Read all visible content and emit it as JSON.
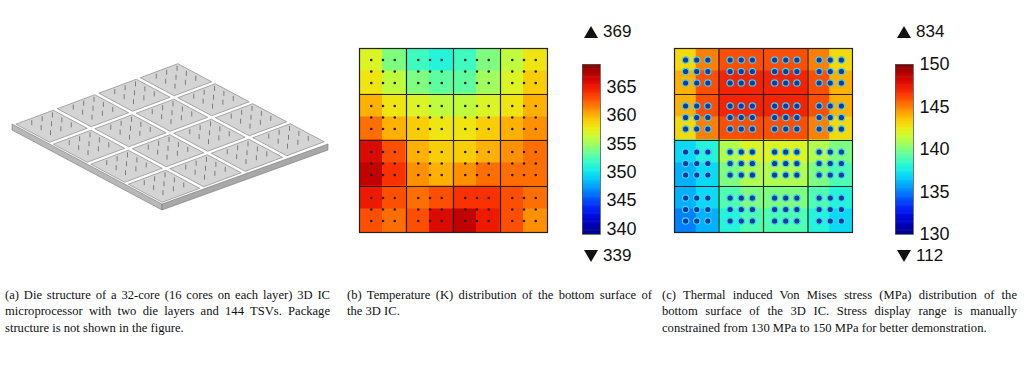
{
  "chart_data": [
    {
      "type": "diagram",
      "caption": "(a) Die structure of a 32-core (16 cores on each layer) 3D IC microprocessor with two die layers and 144 TSVs. Package structure is not shown in the figure."
    },
    {
      "type": "heatmap",
      "caption": "(b) Temperature (K) distribution of the bottom surface of the 3D IC.",
      "cells": [
        [
          357,
          354,
          352,
          351,
          352,
          354,
          356,
          358
        ],
        [
          358,
          356,
          354,
          353,
          353,
          355,
          357,
          359
        ],
        [
          360,
          358,
          357,
          356,
          356,
          357,
          358,
          360
        ],
        [
          362,
          360,
          359,
          358,
          358,
          359,
          360,
          361
        ],
        [
          366,
          363,
          360,
          359,
          359,
          360,
          361,
          362
        ],
        [
          367,
          364,
          361,
          360,
          361,
          362,
          362,
          362
        ],
        [
          365,
          363,
          362,
          363,
          364,
          364,
          363,
          362
        ],
        [
          363,
          362,
          363,
          366,
          367,
          365,
          363,
          361
        ]
      ],
      "color_range": [
        339,
        369
      ],
      "color_ticks": [
        340,
        345,
        350,
        355,
        360,
        365
      ],
      "max": 369,
      "min": 339
    },
    {
      "type": "heatmap",
      "caption": "(c) Thermal induced Von Mises stress (MPa) distribution of the bottom surface of the 3D IC. Stress display range is manually constrained from 130 MPa to 150 MPa for better demonstration.",
      "cells": [
        [
          143,
          145,
          146,
          146,
          146,
          146,
          145,
          143
        ],
        [
          144,
          146,
          147,
          147,
          147,
          147,
          146,
          144
        ],
        [
          144,
          146,
          147,
          147,
          147,
          147,
          146,
          144
        ],
        [
          143,
          145,
          146,
          146,
          146,
          146,
          145,
          143
        ],
        [
          137,
          138,
          141,
          142,
          142,
          142,
          141,
          140
        ],
        [
          136,
          137,
          140,
          141,
          141,
          141,
          140,
          139
        ],
        [
          136,
          137,
          139,
          140,
          140,
          140,
          139,
          138
        ],
        [
          135,
          136,
          138,
          139,
          139,
          139,
          138,
          137
        ]
      ],
      "color_range": [
        130,
        150
      ],
      "color_ticks": [
        130,
        135,
        140,
        145,
        150
      ],
      "max": 834,
      "min": 112
    }
  ]
}
